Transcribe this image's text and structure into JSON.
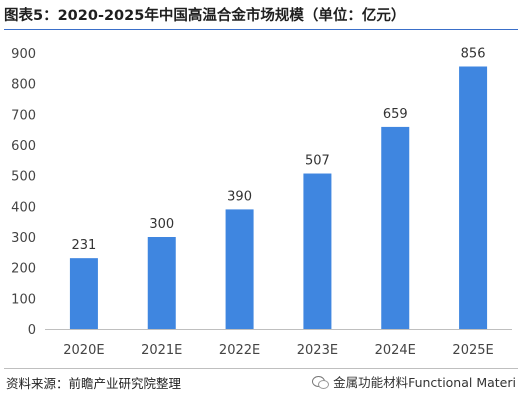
{
  "header": {
    "title": "图表5：2020-2025年中国高温合金市场规模（单位：亿元）"
  },
  "footer": {
    "source": "资料来源：前瞻产业研究院整理",
    "brand": "金属功能材料Functional Materi"
  },
  "colors": {
    "bar": "#3f86e0",
    "axis": "#bfbfbf",
    "tick_text": "#444444",
    "title_rule": "#3a6fc9"
  },
  "chart_data": {
    "type": "bar",
    "title": "图表5：2020-2025年中国高温合金市场规模（单位：亿元）",
    "categories": [
      "2020E",
      "2021E",
      "2022E",
      "2023E",
      "2024E",
      "2025E"
    ],
    "values": [
      231,
      300,
      390,
      507,
      659,
      856
    ],
    "data_labels": [
      "231",
      "300",
      "390",
      "507",
      "659",
      "856"
    ],
    "ylim": [
      0,
      900
    ],
    "yticks": [
      0,
      100,
      200,
      300,
      400,
      500,
      600,
      700,
      800,
      900
    ],
    "xlabel": "",
    "ylabel": "",
    "grid": false,
    "legend": "none"
  }
}
